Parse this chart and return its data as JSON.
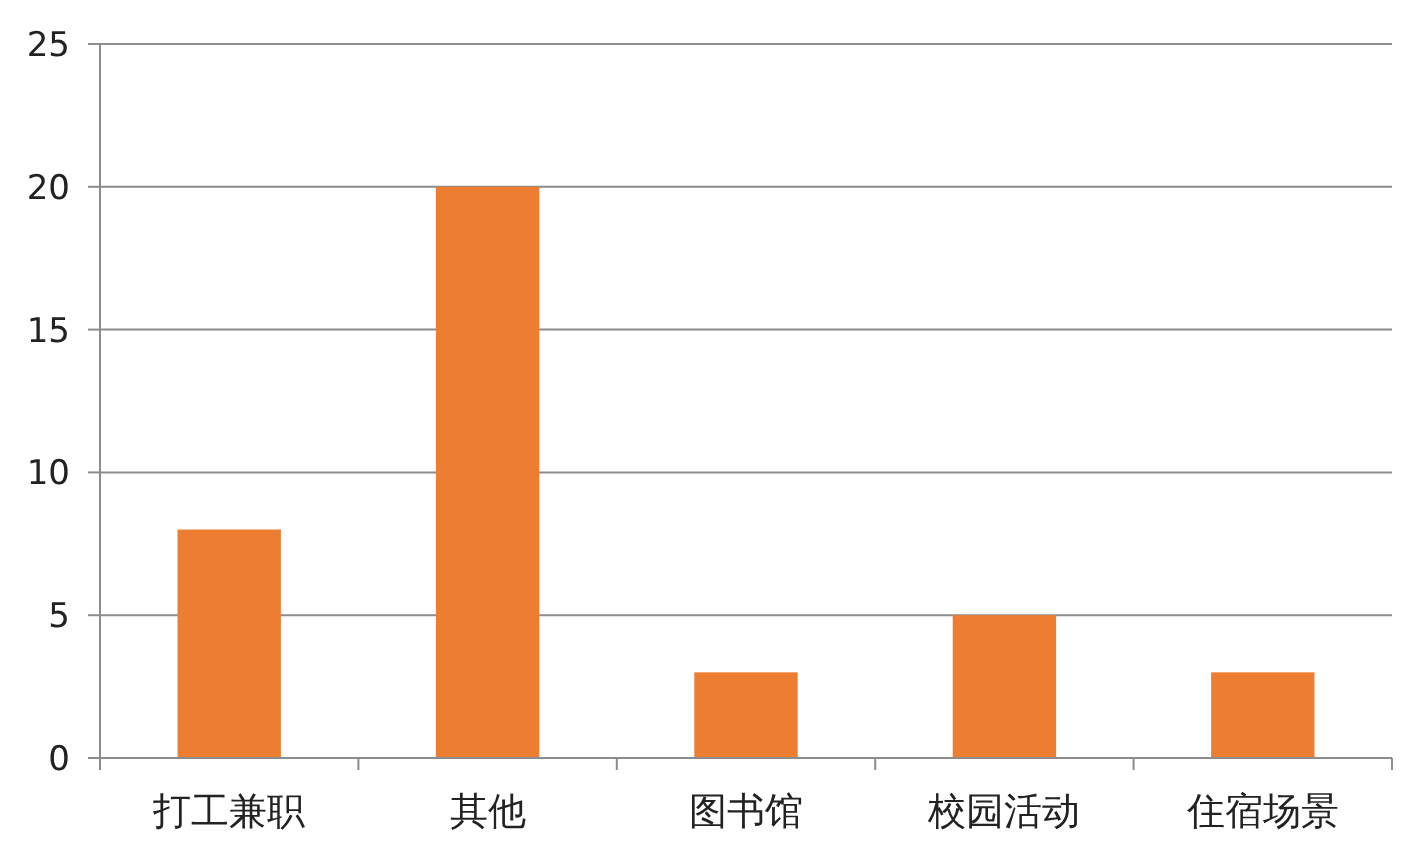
{
  "chart_data": {
    "type": "bar",
    "categories": [
      "打工兼职",
      "其他",
      "图书馆",
      "校园活动",
      "住宿场景"
    ],
    "values": [
      8,
      20,
      3,
      5,
      3
    ],
    "color": "#ed7d31",
    "ylim": [
      0,
      25
    ],
    "yticks": [
      0,
      5,
      10,
      15,
      20,
      25
    ],
    "grid": "y"
  }
}
